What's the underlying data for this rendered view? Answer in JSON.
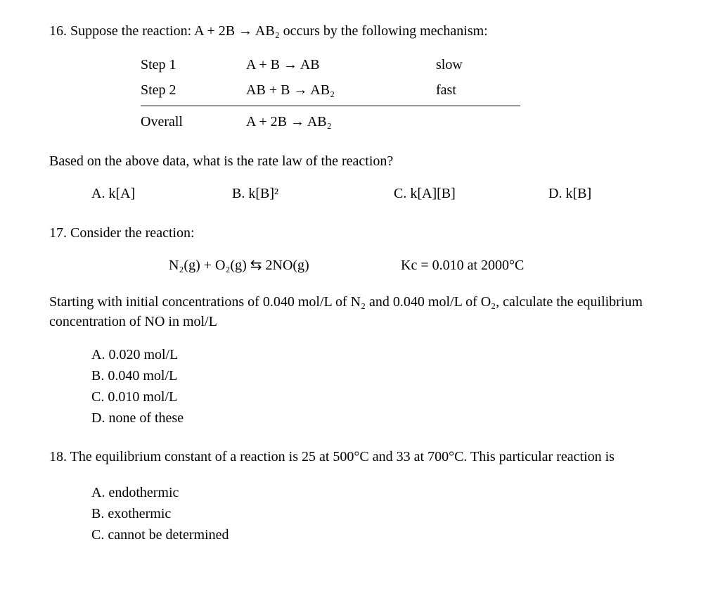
{
  "q16": {
    "stem": "16. Suppose the reaction: A + 2B → AB₂ occurs by the following mechanism:",
    "steps": [
      {
        "label": "Step 1",
        "eq": "A + B  → AB",
        "rate": "slow"
      },
      {
        "label": "Step 2",
        "eq": "AB + B → AB₂",
        "rate": "fast"
      }
    ],
    "overall": {
      "label": "Overall",
      "eq": "A + 2B  → AB₂"
    },
    "prompt": "Based on the above data, what is the rate law of the reaction?",
    "opts": {
      "A": "A.  k[A]",
      "B": "B.  k[B]²",
      "C": "C.  k[A][B]",
      "D": "D.  k[B]"
    }
  },
  "q17": {
    "stem": "17. Consider the reaction:",
    "eq": "N₂(g) + O₂(g) ⇆ 2NO(g)",
    "kc": "Kc = 0.010 at 2000°C",
    "prompt": "Starting with initial concentrations of 0.040 mol/L of N₂ and 0.040 mol/L of O₂, calculate the equilibrium concentration of NO in mol/L",
    "opts": {
      "A": "A. 0.020 mol/L",
      "B": "B. 0.040 mol/L",
      "C": "C. 0.010 mol/L",
      "D": "D. none of these"
    }
  },
  "q18": {
    "stem": "18. The equilibrium constant of a reaction is 25 at 500°C and 33 at 700°C. This particular reaction is",
    "opts": {
      "A": "A. endothermic",
      "B": "B. exothermic",
      "C": "C. cannot be determined"
    }
  },
  "style": {
    "font_family": "Times New Roman",
    "base_fontsize_pt": 15,
    "text_color": "#000000",
    "background_color": "#ffffff",
    "rule_color": "#000000"
  }
}
